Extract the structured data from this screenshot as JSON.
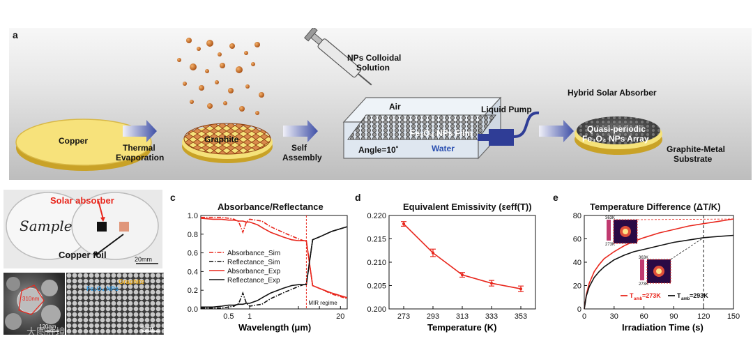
{
  "panel_a": {
    "label": "a",
    "copper": "Copper",
    "step1": [
      "Thermal",
      "Evaporation"
    ],
    "graphite": "Graphite",
    "step2": [
      "Self",
      "Assembly"
    ],
    "syringe_label": [
      "NPs Colloidal",
      "Solution"
    ],
    "air": "Air",
    "film": "Fe₃O₄ NPs Film",
    "angle": "Angle=10˚",
    "water": "Water",
    "pump": "Liquid Pump",
    "hybrid": "Hybrid Solar Absorber",
    "disk_text": [
      "Quasi-periodic",
      "Fe₃O₄ NPs Array"
    ],
    "substrate": [
      "Graphite-Metal",
      "Substrate"
    ],
    "colors": {
      "copper": "#f5e27a",
      "graphite_disk": "#d07a3a",
      "arrow": "#4a5aa8"
    }
  },
  "panel_b": {
    "label": "b",
    "sample_text": "Sample",
    "solar_absorber": "Solar absorber",
    "copper_foil": "Copper foil",
    "scale1": "20mm",
    "sem_left_scale": "120nm",
    "sem_left_measure": "310nm",
    "graphite_tag": "Graphite",
    "nps_tag": "Fe₃O₄ NPs",
    "scale2": "3um",
    "watermark": "大图胜境"
  },
  "chart_data": [
    {
      "id": "c",
      "type": "line",
      "panel_label": "c",
      "title": "Absorbance/Reflectance",
      "xlabel": "Wavelength (μm)",
      "ylabel": "",
      "xscale": "log",
      "xlim": [
        0.2,
        25
      ],
      "ylim": [
        0.0,
        1.0
      ],
      "xticks": [
        0.5,
        1,
        5,
        10,
        20
      ],
      "xtick_labels": [
        "0.5",
        "1",
        "",
        "",
        "20"
      ],
      "yticks": [
        0.0,
        0.2,
        0.4,
        0.6,
        0.8,
        1.0
      ],
      "ytick_labels": [
        "0.0",
        "0.2",
        "0.4",
        "0.6",
        "0.8",
        "1.0"
      ],
      "divider_x": 6.5,
      "annotation": "MIR regime",
      "legend": [
        "Absorbance_Sim",
        "Reflectance_Sim",
        "Absorbance_Exp",
        "Reflectance_Exp"
      ],
      "series": [
        {
          "name": "Absorbance_Sim",
          "color": "#e8261c",
          "dash": true,
          "x": [
            0.2,
            0.3,
            0.4,
            0.5,
            0.6,
            0.7,
            0.8,
            0.9,
            1.0,
            1.5,
            2,
            3,
            4,
            5,
            6.5,
            8,
            10,
            15,
            25
          ],
          "y": [
            0.98,
            0.98,
            0.98,
            0.97,
            0.96,
            0.93,
            0.82,
            0.93,
            0.96,
            0.94,
            0.88,
            0.82,
            0.78,
            0.75,
            0.72,
            0.25,
            0.22,
            0.16,
            0.11
          ]
        },
        {
          "name": "Reflectance_Sim",
          "color": "#111111",
          "dash": true,
          "x": [
            0.2,
            0.3,
            0.4,
            0.5,
            0.6,
            0.7,
            0.8,
            0.9,
            1.0,
            1.5,
            2,
            3,
            4,
            5,
            6.5,
            8,
            10,
            15,
            25
          ],
          "y": [
            0.01,
            0.01,
            0.01,
            0.02,
            0.03,
            0.06,
            0.17,
            0.06,
            0.03,
            0.05,
            0.11,
            0.17,
            0.21,
            0.24,
            0.27,
            0.74,
            0.77,
            0.83,
            0.88
          ]
        },
        {
          "name": "Absorbance_Exp",
          "color": "#e8261c",
          "dash": false,
          "x": [
            0.2,
            0.3,
            0.4,
            0.5,
            0.6,
            0.7,
            0.8,
            0.9,
            1.0,
            1.3,
            1.6,
            2,
            3,
            4,
            5,
            6.5,
            8,
            10,
            15,
            25
          ],
          "y": [
            0.97,
            0.96,
            0.96,
            0.95,
            0.95,
            0.94,
            0.94,
            0.93,
            0.93,
            0.9,
            0.86,
            0.82,
            0.77,
            0.74,
            0.73,
            0.73,
            0.25,
            0.22,
            0.17,
            0.12
          ]
        },
        {
          "name": "Reflectance_Exp",
          "color": "#111111",
          "dash": false,
          "x": [
            0.2,
            0.3,
            0.4,
            0.5,
            0.6,
            0.7,
            0.8,
            0.9,
            1.0,
            1.3,
            1.6,
            2,
            3,
            4,
            5,
            6.5,
            8,
            10,
            15,
            25
          ],
          "y": [
            0.02,
            0.02,
            0.03,
            0.04,
            0.04,
            0.05,
            0.05,
            0.06,
            0.06,
            0.09,
            0.13,
            0.17,
            0.22,
            0.25,
            0.26,
            0.26,
            0.74,
            0.77,
            0.83,
            0.88
          ]
        }
      ]
    },
    {
      "id": "d",
      "type": "line",
      "panel_label": "d",
      "title": "Equivalent  Emissivity (εeff(T))",
      "xlabel": "Temperature (K)",
      "ylabel": "",
      "xlim": [
        263,
        363
      ],
      "ylim": [
        0.2,
        0.22
      ],
      "xticks": [
        273,
        293,
        313,
        333,
        353
      ],
      "yticks": [
        0.2,
        0.205,
        0.21,
        0.215,
        0.22
      ],
      "ytick_labels": [
        "0.200",
        "0.205",
        "0.210",
        "0.215",
        "0.220"
      ],
      "series": [
        {
          "name": "Emissivity",
          "color": "#e8261c",
          "x": [
            273,
            293,
            313,
            333,
            353
          ],
          "y": [
            0.2182,
            0.212,
            0.2073,
            0.2055,
            0.2043
          ],
          "err": [
            0.0005,
            0.0008,
            0.0005,
            0.0006,
            0.0006
          ]
        }
      ]
    },
    {
      "id": "e",
      "type": "line",
      "panel_label": "e",
      "title": "Temperature Difference (ΔT/K)",
      "xlabel": "Irradiation Time (s)",
      "ylabel": "",
      "xlim": [
        0,
        150
      ],
      "ylim": [
        0,
        80
      ],
      "xticks": [
        0,
        30,
        60,
        90,
        120,
        150
      ],
      "yticks": [
        0,
        20,
        40,
        60,
        80
      ],
      "vline_x": 120,
      "inset_top": "363K",
      "inset_bottom": "273K",
      "legend": [
        "T",
        "T"
      ],
      "legend_sub": [
        "amb",
        "amb"
      ],
      "legend_val": [
        "=273K",
        "=293K"
      ],
      "series": [
        {
          "name": "Tamb=273K",
          "color": "#e8261c",
          "x": [
            0,
            2,
            5,
            10,
            15,
            20,
            30,
            40,
            50,
            60,
            75,
            90,
            105,
            120,
            135,
            150
          ],
          "y": [
            0,
            12,
            22,
            32,
            38,
            43,
            49,
            54,
            58,
            61,
            65,
            68,
            71,
            73,
            75,
            77
          ]
        },
        {
          "name": "Tamb=293K",
          "color": "#111111",
          "x": [
            0,
            2,
            5,
            10,
            15,
            20,
            30,
            40,
            50,
            60,
            75,
            90,
            105,
            120,
            135,
            150
          ],
          "y": [
            0,
            11,
            19,
            27,
            32,
            36,
            42,
            46,
            49,
            51,
            54,
            57,
            59,
            61,
            62,
            63
          ]
        }
      ]
    }
  ]
}
